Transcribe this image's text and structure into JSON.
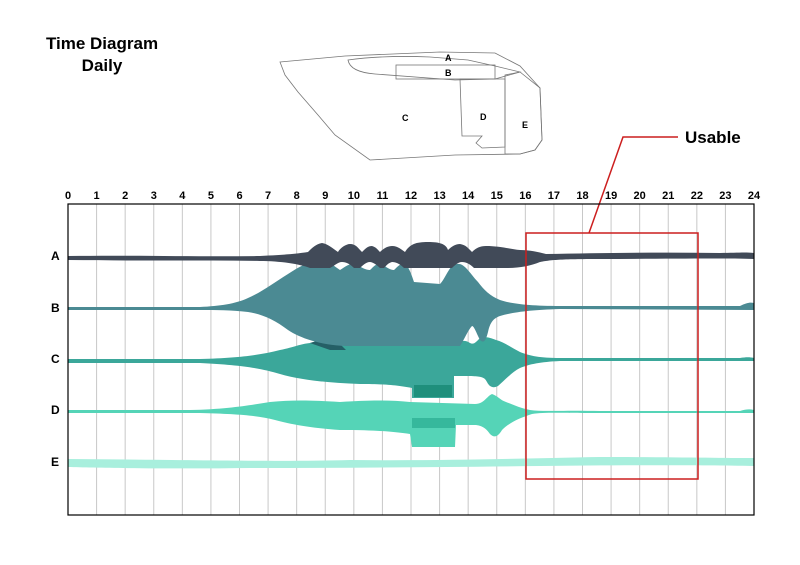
{
  "title": {
    "line1": "Time Diagram",
    "line2": "Daily"
  },
  "map": {
    "zone_labels": [
      "A",
      "B",
      "C",
      "D",
      "E"
    ]
  },
  "annotation": {
    "label": "Usable",
    "color": "#cc1f1f",
    "start_hour": 16,
    "end_hour": 22
  },
  "chart_data": {
    "type": "area",
    "x_ticks": [
      "0",
      "1",
      "2",
      "3",
      "4",
      "5",
      "6",
      "7",
      "8",
      "9",
      "10",
      "11",
      "12",
      "13",
      "14",
      "15",
      "16",
      "17",
      "18",
      "19",
      "20",
      "21",
      "22",
      "23",
      "24"
    ],
    "xlim": [
      0,
      24
    ],
    "rows": [
      {
        "name": "A",
        "color": "#414a58"
      },
      {
        "name": "B",
        "color": "#4b8a93"
      },
      {
        "name": "C",
        "color": "#3ba79a"
      },
      {
        "name": "D",
        "color": "#55d4b7"
      },
      {
        "name": "E",
        "color": "#a8efdd"
      }
    ]
  }
}
